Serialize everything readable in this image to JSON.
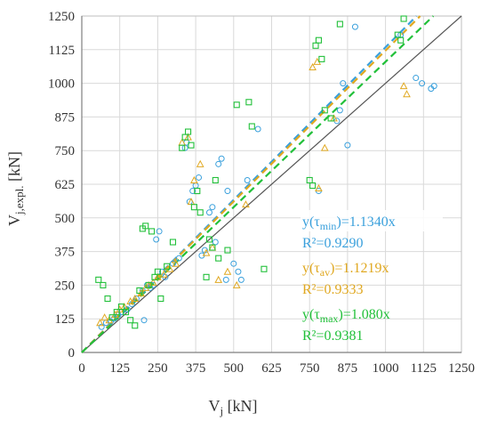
{
  "chart_data": {
    "type": "scatter",
    "xlabel": "V_j [kN]",
    "ylabel": "V_j,expl. [kN]",
    "xlim": [
      0,
      1250
    ],
    "ylim": [
      0,
      1250
    ],
    "xticks": [
      "0",
      "125",
      "250",
      "375",
      "500",
      "625",
      "750",
      "875",
      "1000",
      "1125",
      "1250"
    ],
    "yticks": [
      "0",
      "125",
      "250",
      "375",
      "500",
      "625",
      "750",
      "875",
      "1000",
      "1125",
      "1250"
    ],
    "grid": true,
    "reference_line": {
      "name": "y = x",
      "slope": 1.0,
      "color": "#555555"
    },
    "series": [
      {
        "key": "min",
        "label": "y(τmin)=1.1340x",
        "r2_label": "R²=0.9290",
        "slope": 1.134,
        "color": "#3aa0dc",
        "marker": "circle",
        "x": [
          65,
          80,
          95,
          105,
          120,
          130,
          150,
          165,
          180,
          200,
          205,
          215,
          225,
          235,
          245,
          255,
          265,
          275,
          300,
          320,
          340,
          345,
          355,
          365,
          375,
          385,
          395,
          405,
          420,
          430,
          440,
          450,
          460,
          475,
          480,
          500,
          515,
          525,
          545,
          580,
          780,
          840,
          850,
          860,
          875,
          900,
          1050,
          1100,
          1120,
          1150,
          1160
        ],
        "y": [
          95,
          110,
          115,
          125,
          140,
          150,
          160,
          180,
          200,
          230,
          120,
          250,
          240,
          250,
          420,
          450,
          300,
          280,
          330,
          350,
          760,
          780,
          560,
          600,
          620,
          650,
          360,
          380,
          520,
          540,
          410,
          700,
          720,
          270,
          600,
          330,
          300,
          270,
          640,
          830,
          600,
          860,
          900,
          1000,
          770,
          1210,
          1180,
          1020,
          1000,
          980,
          990
        ]
      },
      {
        "key": "av",
        "label": "y(τav)=1.1219x",
        "r2_label": "R²=0.9333",
        "slope": 1.1219,
        "color": "#e0a820",
        "marker": "triangle",
        "x": [
          60,
          75,
          90,
          110,
          125,
          140,
          160,
          175,
          195,
          210,
          220,
          235,
          250,
          270,
          290,
          310,
          330,
          350,
          360,
          370,
          390,
          410,
          430,
          450,
          480,
          510,
          540,
          760,
          775,
          780,
          800,
          830,
          1060,
          1070
        ],
        "y": [
          110,
          130,
          120,
          140,
          160,
          170,
          190,
          200,
          220,
          240,
          250,
          260,
          280,
          290,
          310,
          330,
          780,
          800,
          560,
          640,
          700,
          370,
          390,
          270,
          300,
          250,
          550,
          1060,
          1080,
          610,
          760,
          870,
          990,
          960
        ]
      },
      {
        "key": "max",
        "label": "y(τmax)=1.080x",
        "r2_label": "R²=0.9381",
        "slope": 1.08,
        "color": "#22c03a",
        "marker": "square",
        "x": [
          55,
          70,
          85,
          100,
          115,
          130,
          145,
          160,
          175,
          190,
          200,
          210,
          220,
          230,
          240,
          250,
          260,
          280,
          300,
          330,
          340,
          350,
          360,
          370,
          380,
          390,
          410,
          420,
          430,
          440,
          450,
          480,
          510,
          550,
          560,
          600,
          750,
          760,
          770,
          780,
          790,
          800,
          820,
          850,
          1040,
          1050,
          1060
        ],
        "y": [
          270,
          250,
          200,
          130,
          150,
          170,
          150,
          120,
          100,
          230,
          460,
          470,
          250,
          450,
          280,
          300,
          200,
          320,
          410,
          760,
          800,
          820,
          770,
          540,
          600,
          520,
          280,
          420,
          390,
          640,
          350,
          380,
          920,
          930,
          840,
          310,
          640,
          620,
          1140,
          1160,
          1090,
          900,
          870,
          1220,
          1180,
          1160,
          1240
        ]
      }
    ]
  },
  "legend": [
    {
      "eq": "y(τmin)=1.1340x",
      "r2": "R²=0.9290",
      "color": "#3aa0dc"
    },
    {
      "eq": "y(τav)=1.1219x",
      "r2": "R²=0.9333",
      "color": "#e0a820"
    },
    {
      "eq": "y(τmax)=1.080x",
      "r2": "R²=0.9381",
      "color": "#22c03a"
    }
  ]
}
